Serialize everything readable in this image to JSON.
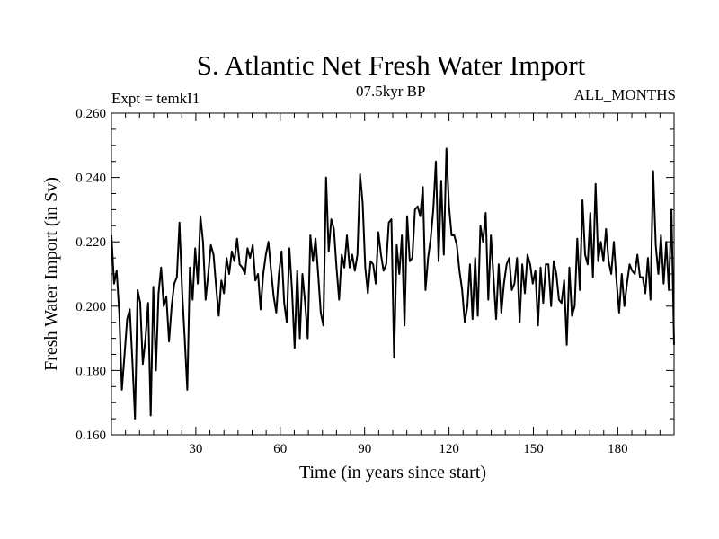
{
  "chart_data": {
    "type": "line",
    "title": "S. Atlantic Net Fresh Water Import",
    "experiment": "Expt = temkI1",
    "period": "07.5kyr BP",
    "months": "ALL_MONTHS",
    "xlabel": "Time (in years since start)",
    "ylabel": "Fresh Water Import (in Sv)",
    "xlim": [
      0,
      200
    ],
    "ylim": [
      0.16,
      0.26
    ],
    "x_ticks": [
      30,
      60,
      90,
      120,
      150,
      180
    ],
    "y_ticks": [
      "0.160",
      "0.180",
      "0.200",
      "0.220",
      "0.240",
      "0.260"
    ],
    "series": [
      {
        "name": "fresh water import",
        "values": [
          0.222,
          0.207,
          0.211,
          0.198,
          0.174,
          0.185,
          0.196,
          0.199,
          0.183,
          0.165,
          0.205,
          0.201,
          0.182,
          0.19,
          0.201,
          0.166,
          0.206,
          0.18,
          0.204,
          0.212,
          0.2,
          0.203,
          0.189,
          0.2,
          0.207,
          0.209,
          0.226,
          0.205,
          0.19,
          0.174,
          0.212,
          0.202,
          0.218,
          0.207,
          0.228,
          0.22,
          0.202,
          0.21,
          0.219,
          0.216,
          0.206,
          0.197,
          0.208,
          0.204,
          0.215,
          0.21,
          0.217,
          0.214,
          0.221,
          0.213,
          0.212,
          0.21,
          0.218,
          0.215,
          0.219,
          0.208,
          0.21,
          0.199,
          0.21,
          0.216,
          0.22,
          0.211,
          0.203,
          0.198,
          0.21,
          0.217,
          0.201,
          0.195,
          0.218,
          0.205,
          0.187,
          0.211,
          0.19,
          0.21,
          0.201,
          0.19,
          0.222,
          0.214,
          0.221,
          0.21,
          0.198,
          0.194,
          0.24,
          0.217,
          0.227,
          0.224,
          0.212,
          0.202,
          0.216,
          0.212,
          0.222,
          0.212,
          0.216,
          0.211,
          0.216,
          0.241,
          0.232,
          0.212,
          0.204,
          0.214,
          0.213,
          0.207,
          0.223,
          0.216,
          0.211,
          0.213,
          0.226,
          0.227,
          0.184,
          0.219,
          0.21,
          0.222,
          0.194,
          0.228,
          0.214,
          0.215,
          0.23,
          0.231,
          0.228,
          0.237,
          0.205,
          0.215,
          0.221,
          0.23,
          0.245,
          0.214,
          0.239,
          0.216,
          0.249,
          0.231,
          0.222,
          0.222,
          0.219,
          0.211,
          0.205,
          0.195,
          0.2,
          0.213,
          0.196,
          0.215,
          0.197,
          0.225,
          0.22,
          0.229,
          0.202,
          0.222,
          0.209,
          0.196,
          0.213,
          0.198,
          0.207,
          0.213,
          0.215,
          0.205,
          0.207,
          0.215,
          0.195,
          0.213,
          0.204,
          0.216,
          0.213,
          0.207,
          0.211,
          0.194,
          0.212,
          0.201,
          0.213,
          0.213,
          0.2,
          0.214,
          0.21,
          0.202,
          0.201,
          0.208,
          0.188,
          0.212,
          0.197,
          0.2,
          0.221,
          0.205,
          0.233,
          0.216,
          0.213,
          0.229,
          0.209,
          0.238,
          0.214,
          0.22,
          0.214,
          0.224,
          0.214,
          0.21,
          0.22,
          0.208,
          0.198,
          0.21,
          0.2,
          0.207,
          0.213,
          0.211,
          0.21,
          0.216,
          0.209,
          0.209,
          0.204,
          0.215,
          0.202,
          0.242,
          0.219,
          0.21,
          0.222,
          0.207,
          0.22,
          0.205,
          0.23,
          0.188
        ]
      }
    ]
  }
}
